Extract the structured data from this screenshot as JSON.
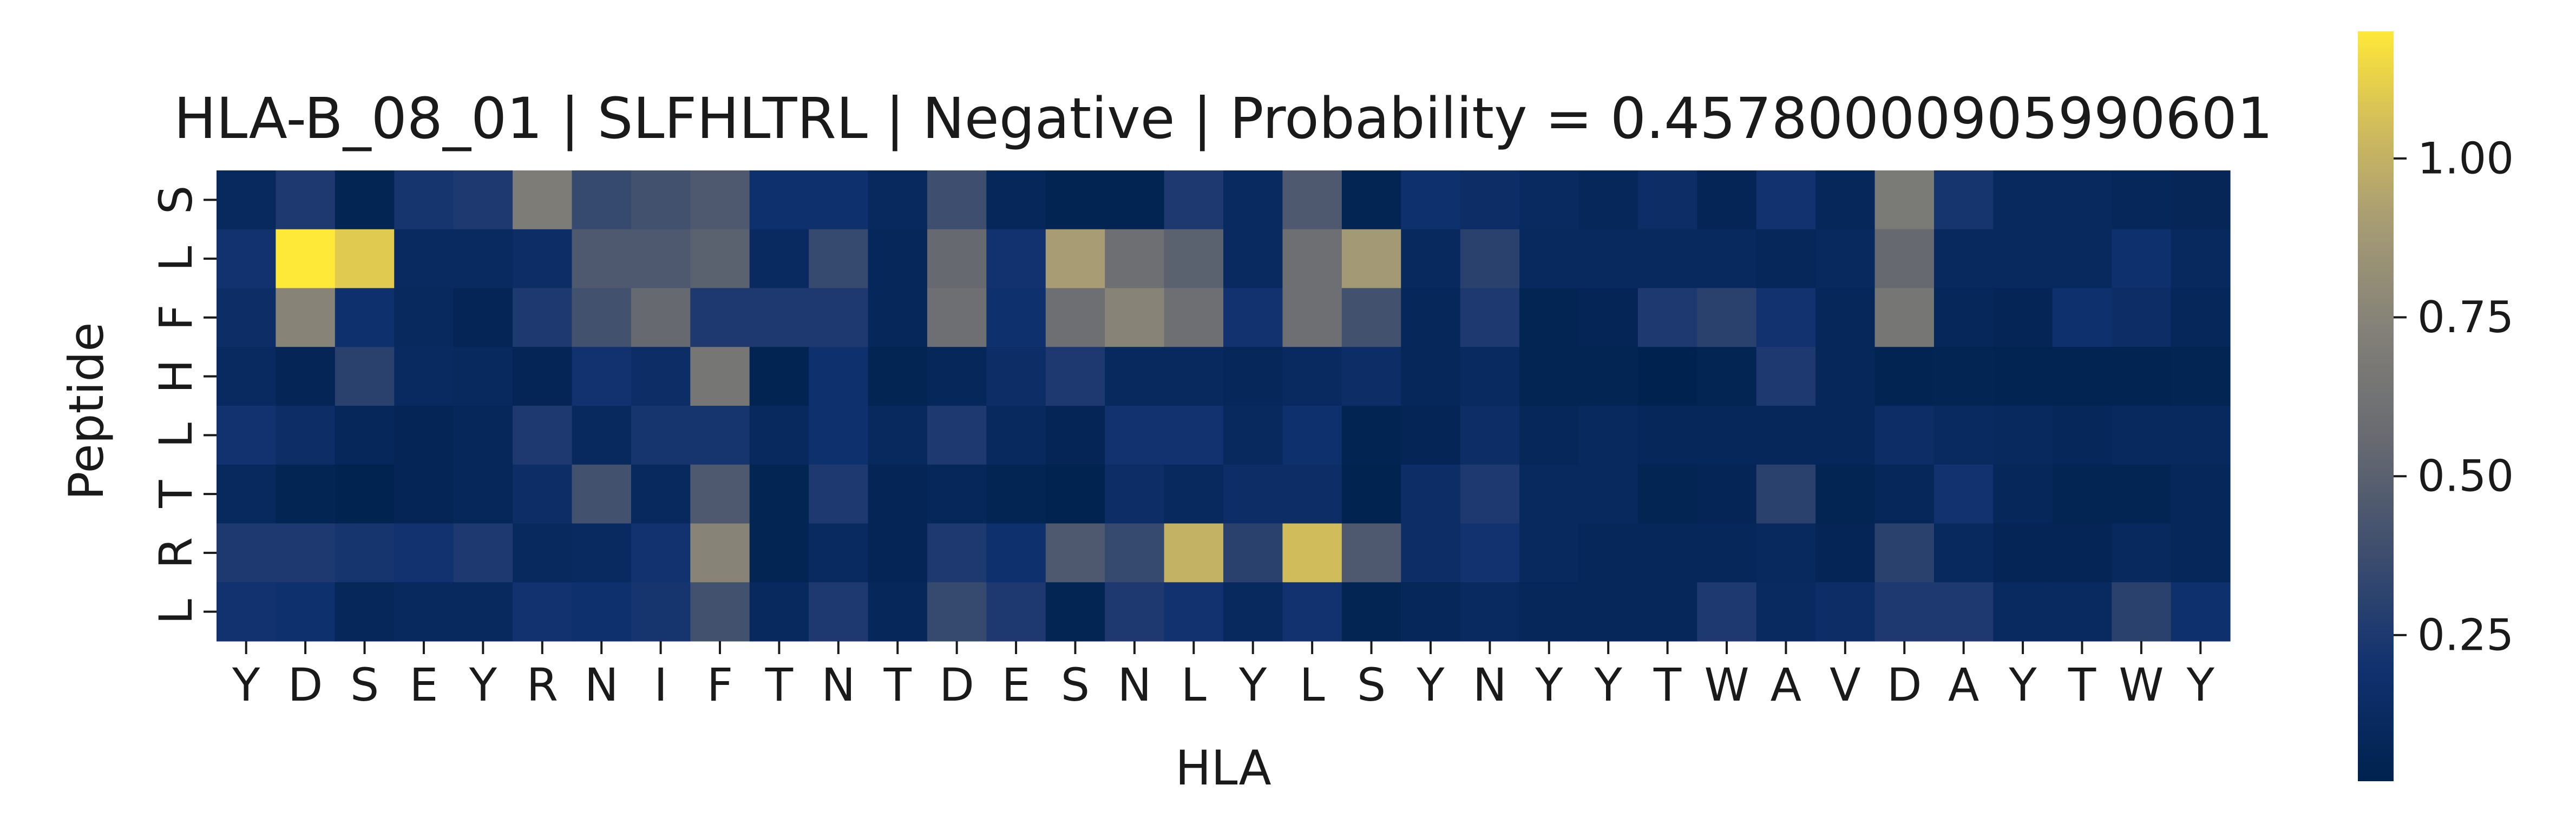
{
  "chart_data": {
    "type": "heatmap",
    "title": "HLA-B_08_01 | SLFHLTRL | Negative | Probability = 0.45780000905990601",
    "xlabel": "HLA",
    "ylabel": "Peptide",
    "x_labels": [
      "Y",
      "D",
      "S",
      "E",
      "Y",
      "R",
      "N",
      "I",
      "F",
      "T",
      "N",
      "T",
      "D",
      "E",
      "S",
      "N",
      "L",
      "Y",
      "L",
      "S",
      "Y",
      "N",
      "Y",
      "Y",
      "T",
      "W",
      "A",
      "V",
      "D",
      "A",
      "Y",
      "T",
      "W",
      "Y"
    ],
    "y_labels": [
      "S",
      "L",
      "F",
      "H",
      "L",
      "T",
      "R",
      "L"
    ],
    "colormap": "cividis",
    "colorbar": {
      "min": 0.02,
      "max": 1.2,
      "ticks": [
        0.25,
        0.5,
        0.75,
        1.0
      ],
      "tick_labels": [
        "0.25",
        "0.50",
        "0.75",
        "1.00"
      ]
    },
    "values": [
      [
        0.1,
        0.25,
        0.05,
        0.22,
        0.25,
        0.7,
        0.35,
        0.4,
        0.45,
        0.18,
        0.18,
        0.1,
        0.38,
        0.08,
        0.04,
        0.04,
        0.25,
        0.12,
        0.45,
        0.05,
        0.18,
        0.15,
        0.12,
        0.08,
        0.15,
        0.06,
        0.2,
        0.08,
        0.68,
        0.22,
        0.1,
        0.1,
        0.08,
        0.07
      ],
      [
        0.2,
        1.2,
        1.1,
        0.12,
        0.12,
        0.15,
        0.45,
        0.45,
        0.5,
        0.12,
        0.35,
        0.08,
        0.55,
        0.2,
        0.9,
        0.6,
        0.5,
        0.12,
        0.6,
        0.88,
        0.1,
        0.3,
        0.1,
        0.1,
        0.1,
        0.1,
        0.08,
        0.1,
        0.55,
        0.1,
        0.1,
        0.1,
        0.18,
        0.1
      ],
      [
        0.15,
        0.75,
        0.18,
        0.1,
        0.06,
        0.25,
        0.4,
        0.55,
        0.25,
        0.25,
        0.25,
        0.08,
        0.6,
        0.18,
        0.6,
        0.75,
        0.6,
        0.2,
        0.6,
        0.4,
        0.08,
        0.25,
        0.05,
        0.06,
        0.25,
        0.3,
        0.2,
        0.08,
        0.65,
        0.08,
        0.06,
        0.18,
        0.15,
        0.08
      ],
      [
        0.12,
        0.06,
        0.3,
        0.12,
        0.1,
        0.06,
        0.2,
        0.15,
        0.65,
        0.04,
        0.18,
        0.05,
        0.08,
        0.15,
        0.25,
        0.1,
        0.1,
        0.08,
        0.12,
        0.15,
        0.08,
        0.12,
        0.05,
        0.05,
        0.02,
        0.05,
        0.25,
        0.08,
        0.04,
        0.05,
        0.04,
        0.04,
        0.04,
        0.05
      ],
      [
        0.2,
        0.15,
        0.08,
        0.06,
        0.08,
        0.25,
        0.1,
        0.22,
        0.22,
        0.1,
        0.18,
        0.1,
        0.25,
        0.1,
        0.06,
        0.2,
        0.2,
        0.1,
        0.18,
        0.04,
        0.06,
        0.15,
        0.08,
        0.1,
        0.08,
        0.08,
        0.08,
        0.08,
        0.15,
        0.12,
        0.1,
        0.08,
        0.1,
        0.1
      ],
      [
        0.1,
        0.05,
        0.03,
        0.06,
        0.08,
        0.15,
        0.4,
        0.1,
        0.45,
        0.05,
        0.25,
        0.06,
        0.08,
        0.05,
        0.03,
        0.15,
        0.1,
        0.15,
        0.15,
        0.03,
        0.15,
        0.25,
        0.1,
        0.1,
        0.05,
        0.06,
        0.3,
        0.05,
        0.08,
        0.2,
        0.08,
        0.05,
        0.05,
        0.08
      ],
      [
        0.25,
        0.25,
        0.22,
        0.2,
        0.25,
        0.1,
        0.12,
        0.2,
        0.75,
        0.05,
        0.12,
        0.06,
        0.25,
        0.18,
        0.45,
        0.35,
        1.0,
        0.3,
        1.05,
        0.45,
        0.15,
        0.2,
        0.1,
        0.08,
        0.08,
        0.08,
        0.1,
        0.06,
        0.3,
        0.1,
        0.06,
        0.06,
        0.1,
        0.08
      ],
      [
        0.2,
        0.18,
        0.08,
        0.1,
        0.1,
        0.2,
        0.18,
        0.22,
        0.4,
        0.1,
        0.25,
        0.08,
        0.35,
        0.25,
        0.05,
        0.25,
        0.2,
        0.1,
        0.2,
        0.05,
        0.08,
        0.12,
        0.08,
        0.08,
        0.08,
        0.25,
        0.12,
        0.15,
        0.25,
        0.25,
        0.12,
        0.12,
        0.3,
        0.18
      ]
    ]
  }
}
